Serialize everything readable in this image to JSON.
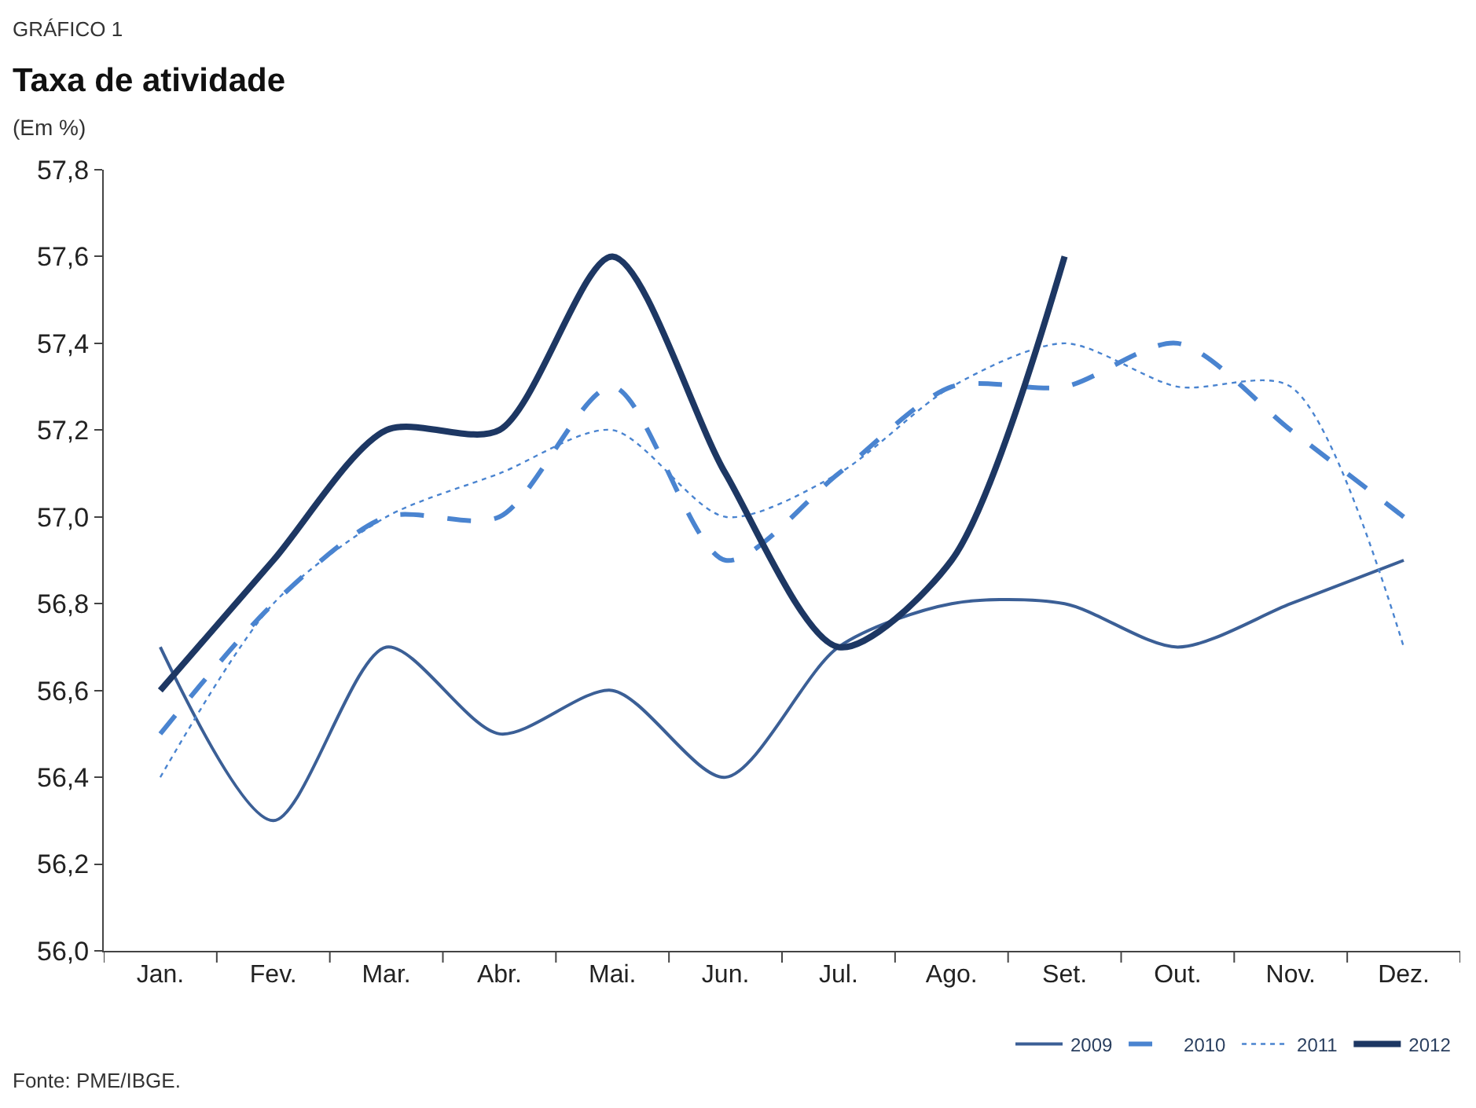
{
  "chart_data": {
    "type": "line",
    "title": "Taxa de atividade",
    "subtitle": "(Em %)",
    "annotations": [
      "GRÁFICO 1",
      "Fonte: PME/IBGE."
    ],
    "categories": [
      "Jan.",
      "Fev.",
      "Mar.",
      "Abr.",
      "Mai.",
      "Jun.",
      "Jul.",
      "Ago.",
      "Set.",
      "Out.",
      "Nov.",
      "Dez."
    ],
    "series": [
      {
        "name": "2009",
        "color": "#3b5f96",
        "line_style": "solid",
        "values": [
          56.7,
          56.3,
          56.7,
          56.5,
          56.6,
          56.4,
          56.7,
          56.8,
          56.8,
          56.7,
          56.8,
          56.9
        ]
      },
      {
        "name": "2010",
        "color": "#4a84d0",
        "line_style": "dashed",
        "values": [
          56.5,
          56.8,
          57.0,
          57.0,
          57.3,
          56.9,
          57.1,
          57.3,
          57.3,
          57.4,
          57.2,
          57.0
        ]
      },
      {
        "name": "2011",
        "color": "#4a84d0",
        "line_style": "dotted",
        "values": [
          56.4,
          56.8,
          57.0,
          57.1,
          57.2,
          57.0,
          57.1,
          57.3,
          57.4,
          57.3,
          57.3,
          56.7
        ]
      },
      {
        "name": "2012",
        "color": "#1d3763",
        "line_style": "solid",
        "values": [
          56.6,
          56.9,
          57.2,
          57.2,
          57.6,
          57.1,
          56.7,
          56.9,
          57.6,
          null,
          null,
          null
        ]
      }
    ],
    "ylim": [
      56.0,
      57.8
    ],
    "yticks": [
      {
        "value": 56.0,
        "label": "56,0"
      },
      {
        "value": 56.2,
        "label": "56,2"
      },
      {
        "value": 56.4,
        "label": "56,4"
      },
      {
        "value": 56.6,
        "label": "56,6"
      },
      {
        "value": 56.8,
        "label": "56,8"
      },
      {
        "value": 57.0,
        "label": "57,0"
      },
      {
        "value": 57.2,
        "label": "57,2"
      },
      {
        "value": 57.4,
        "label": "57,4"
      },
      {
        "value": 57.6,
        "label": "57,6"
      },
      {
        "value": 57.8,
        "label": "57,8"
      }
    ],
    "grid": false,
    "legend": "bottom right",
    "marker": "none"
  }
}
